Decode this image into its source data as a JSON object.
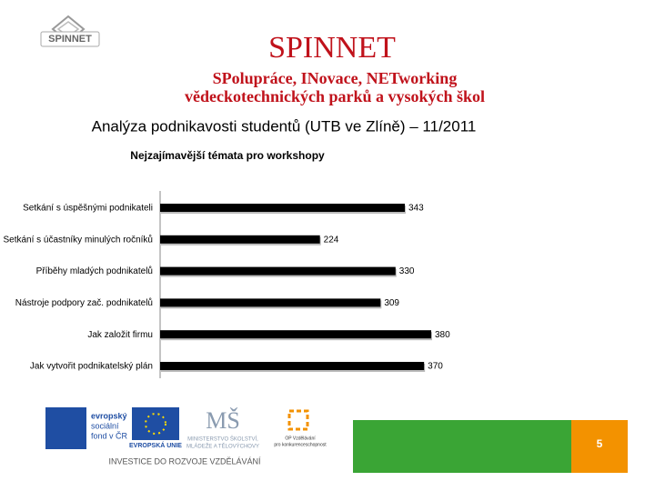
{
  "header": {
    "logo_text": "SPINNET",
    "title": "SPINNET",
    "subtitle_lines": [
      "SPolupráce, INovace, NETworking",
      "vědeckotechnických parků a vysokých škol"
    ],
    "heading": "Analýza podnikavosti studentů (UTB ve Zlíně) – 11/2011"
  },
  "chart_data": {
    "type": "hbar",
    "title": "Nejzajímavější témata pro workshopy",
    "categories": [
      "Setkání s úspěšnými podnikateli",
      "Setkání s účastníky minulých ročníků",
      "Příběhy mladých podnikatelů",
      "Nástroje podpory zač. podnikatelů",
      "Jak založit firmu",
      "Jak vytvořit podnikatelský plán"
    ],
    "values": [
      343,
      224,
      330,
      309,
      380,
      370
    ],
    "color": "#000000"
  },
  "footer": {
    "esf_lines": [
      "evropský",
      "sociální",
      "fond v ČR"
    ],
    "eu": "EVROPSKÁ UNIE",
    "msmt_lines": [
      "MINISTERSTVO ŠKOLSTVÍ,",
      "MLÁDEŽE A TĚLOVÝCHOVY"
    ],
    "op_lines": [
      "OP Vzdělávání",
      "pro konkurenceschopnost"
    ],
    "slogan": "INVESTICE DO ROZVOJE VZDĚLÁVÁNÍ",
    "page_number": "5"
  }
}
